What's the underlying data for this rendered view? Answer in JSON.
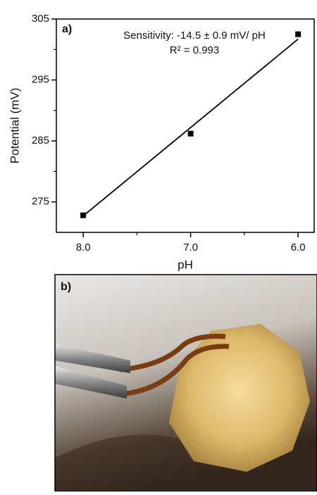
{
  "chart_data": {
    "type": "scatter",
    "panel_label": "a)",
    "annotations": [
      "Sensitivity: -14.5 ± 0.9 mV/ pH",
      "R² = 0.993"
    ],
    "xlabel": "pH",
    "ylabel": "Potential (mV)",
    "xlim": [
      8.25,
      5.85
    ],
    "ylim": [
      270,
      305
    ],
    "xticks": [
      {
        "value": 8,
        "label": "8.0"
      },
      {
        "value": 7,
        "label": "7.0"
      },
      {
        "value": 6,
        "label": "6.0"
      }
    ],
    "xminorticks": [
      7.5,
      6.5
    ],
    "yticks": [
      275,
      285,
      295,
      305
    ],
    "yminorticks": [
      280,
      290,
      300
    ],
    "series": [
      {
        "type": "scatter",
        "color": "#000000",
        "x": [
          8,
          7,
          6
        ],
        "values": [
          272.8,
          286.2,
          302.5
        ]
      },
      {
        "type": "line",
        "color": "#000000",
        "x": [
          8,
          6
        ],
        "values": [
          272.7,
          301.7
        ]
      }
    ]
  },
  "photo": {
    "label": "b)"
  }
}
